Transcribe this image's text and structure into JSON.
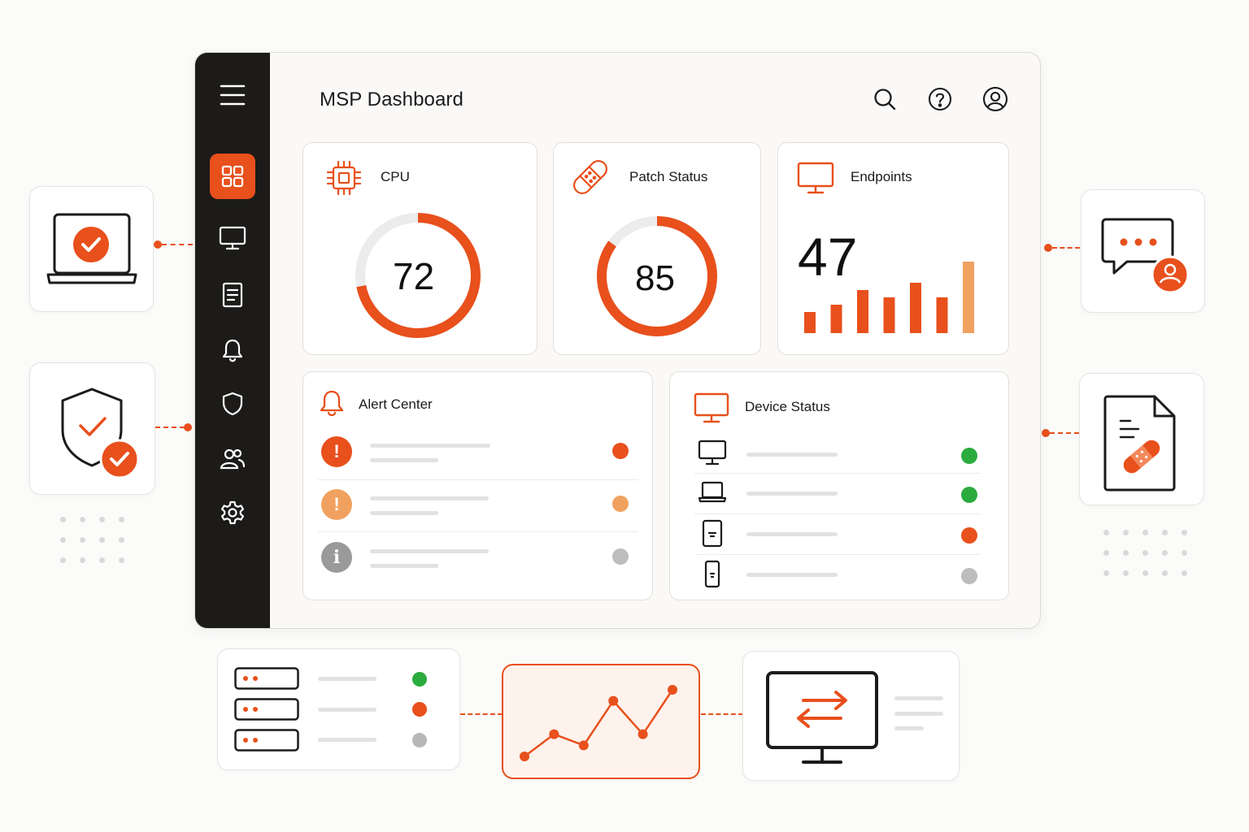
{
  "app": {
    "title": "MSP Dashboard"
  },
  "colors": {
    "accent": "#e8501c",
    "accent_light": "#f1a15f",
    "gray": "#9a9a9a",
    "ok": "#2bab3e"
  },
  "sidebar": {
    "items": [
      {
        "icon": "grid-icon",
        "active": true
      },
      {
        "icon": "monitor-icon",
        "active": false
      },
      {
        "icon": "document-icon",
        "active": false
      },
      {
        "icon": "bell-icon",
        "active": false
      },
      {
        "icon": "shield-icon",
        "active": false
      },
      {
        "icon": "users-icon",
        "active": false
      },
      {
        "icon": "settings-icon",
        "active": false
      }
    ]
  },
  "header_icons": [
    "search-icon",
    "help-icon",
    "account-icon"
  ],
  "cards": {
    "cpu": {
      "label": "CPU",
      "value": "72",
      "percent": 72
    },
    "patch": {
      "label": "Patch Status",
      "value": "85",
      "percent": 85
    },
    "endpoints": {
      "label": "Endpoints",
      "value": "47",
      "bars": [
        3,
        4,
        6,
        5,
        7,
        5,
        10
      ]
    }
  },
  "alert_center": {
    "label": "Alert Center",
    "items": [
      {
        "severity": "critical",
        "glyph": "!",
        "dot": "#e8501c"
      },
      {
        "severity": "warning",
        "glyph": "!",
        "dot": "#f1a15f"
      },
      {
        "severity": "info",
        "glyph": "i",
        "dot": "#bdbdbd"
      }
    ]
  },
  "device_status": {
    "label": "Device Status",
    "items": [
      {
        "device": "desktop",
        "dot": "#2bab3e"
      },
      {
        "device": "laptop",
        "dot": "#2bab3e"
      },
      {
        "device": "tablet",
        "dot": "#e8501c"
      },
      {
        "device": "phone",
        "dot": "#bdbdbd"
      }
    ]
  },
  "floating": {
    "servers": [
      {
        "dot": "#2bab3e"
      },
      {
        "dot": "#e8501c"
      },
      {
        "dot": "#b8b8b8"
      }
    ],
    "trend": [
      1,
      3,
      2,
      6,
      3,
      7
    ]
  }
}
